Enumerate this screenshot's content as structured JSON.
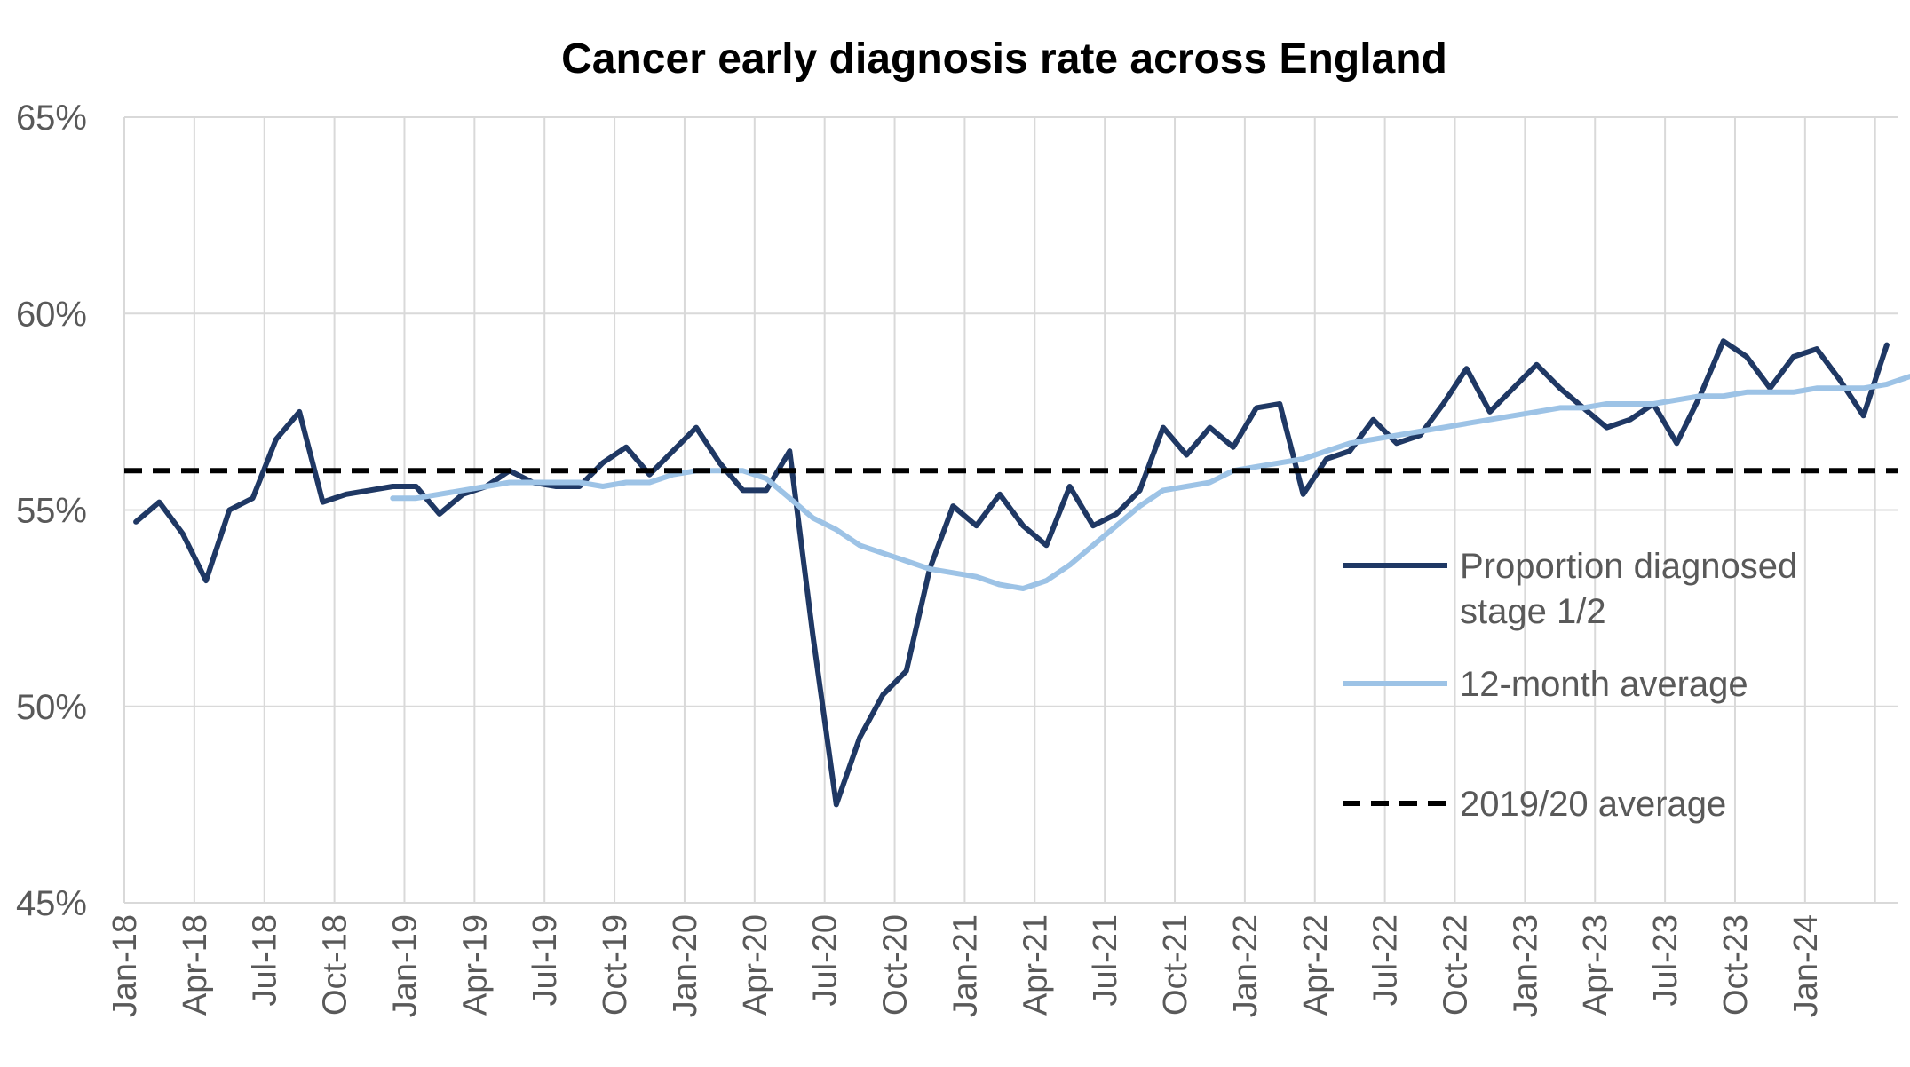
{
  "chart_data": {
    "type": "line",
    "title": "Cancer early diagnosis rate across England",
    "xlabel": "",
    "ylabel": "",
    "ylim": [
      45,
      65
    ],
    "yticks": [
      45,
      50,
      55,
      60,
      65
    ],
    "ytick_labels": [
      "45%",
      "50%",
      "55%",
      "60%",
      "65%"
    ],
    "x_start": "Jan-18",
    "n_months": 76,
    "xtick_labels": [
      "Jan-18",
      "Apr-18",
      "Jul-18",
      "Oct-18",
      "Jan-19",
      "Apr-19",
      "Jul-19",
      "Oct-19",
      "Jan-20",
      "Apr-20",
      "Jul-20",
      "Oct-20",
      "Jan-21",
      "Apr-21",
      "Jul-21",
      "Oct-21",
      "Jan-22",
      "Apr-22",
      "Jul-22",
      "Oct-22",
      "Jan-23",
      "Apr-23",
      "Jul-23",
      "Oct-23",
      "Jan-24"
    ],
    "series": [
      {
        "name": "Proportion diagnosed stage 1/2",
        "color": "#1f3864",
        "style": "solid",
        "start_index": 0,
        "values": [
          54.7,
          55.2,
          54.4,
          53.2,
          55.0,
          55.3,
          56.8,
          57.5,
          55.2,
          55.4,
          55.5,
          55.6,
          55.6,
          54.9,
          55.4,
          55.6,
          56.0,
          55.7,
          55.6,
          55.6,
          56.2,
          56.6,
          55.9,
          56.5,
          57.1,
          56.2,
          55.5,
          55.5,
          56.5,
          51.8,
          47.5,
          49.2,
          50.3,
          50.9,
          53.5,
          55.1,
          54.6,
          55.4,
          54.6,
          54.1,
          55.6,
          54.6,
          54.9,
          55.5,
          57.1,
          56.4,
          57.1,
          56.6,
          57.6,
          57.7,
          55.4,
          56.3,
          56.5,
          57.3,
          56.7,
          56.9,
          57.7,
          58.6,
          57.5,
          58.1,
          58.7,
          58.1,
          57.6,
          57.1,
          57.3,
          57.7,
          56.7,
          57.9,
          59.3,
          58.9,
          58.1,
          58.9,
          59.1,
          58.3,
          57.4,
          59.2
        ]
      },
      {
        "name": "12-month average",
        "color": "#9dc3e6",
        "style": "solid",
        "start_index": 11,
        "values": [
          55.3,
          55.3,
          55.4,
          55.5,
          55.6,
          55.7,
          55.7,
          55.7,
          55.7,
          55.6,
          55.7,
          55.7,
          55.9,
          56.0,
          56.0,
          56.0,
          55.8,
          55.3,
          54.8,
          54.5,
          54.1,
          53.9,
          53.7,
          53.5,
          53.4,
          53.3,
          53.1,
          53.0,
          53.2,
          53.6,
          54.1,
          54.6,
          55.1,
          55.5,
          55.6,
          55.7,
          56.0,
          56.1,
          56.2,
          56.3,
          56.5,
          56.7,
          56.8,
          56.9,
          57.0,
          57.1,
          57.2,
          57.3,
          57.4,
          57.5,
          57.6,
          57.6,
          57.7,
          57.7,
          57.7,
          57.8,
          57.9,
          57.9,
          58.0,
          58.0,
          58.0,
          58.1,
          58.1,
          58.1,
          58.2,
          58.4
        ]
      },
      {
        "name": "2019/20 average",
        "color": "#000000",
        "style": "dashed",
        "constant": 56.0
      }
    ],
    "legend": {
      "position": "right",
      "entries": [
        "Proportion diagnosed",
        "stage 1/2",
        "12-month average",
        "2019/20 average"
      ]
    },
    "grid": true
  }
}
